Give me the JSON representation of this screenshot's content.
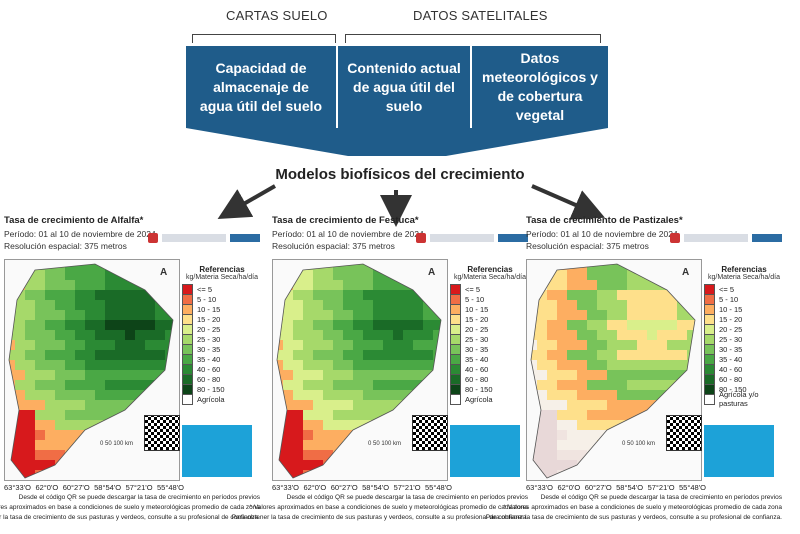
{
  "header": {
    "cartas_label": "CARTAS SUELO",
    "datos_label": "DATOS SATELITALES",
    "boxes": [
      "Capacidad de almacenaje de agua útil del suelo",
      "Contenido actual de agua útil del suelo",
      "Datos meteorológicos y de cobertura vegetal"
    ],
    "models_title": "Modelos biofísicos del crecimiento"
  },
  "colors": {
    "box_blue": "#1f5c8a",
    "info_blue": "#1da2d8"
  },
  "legend": {
    "title": "Referencias",
    "subtitle": "kg/Materia Seca/ha/día",
    "items": [
      {
        "label": "<= 5",
        "color": "#d7191c"
      },
      {
        "label": "5 - 10",
        "color": "#f06d45"
      },
      {
        "label": "10 - 15",
        "color": "#fdae61"
      },
      {
        "label": "15 - 20",
        "color": "#fee08b"
      },
      {
        "label": "20 - 25",
        "color": "#d9ef8b"
      },
      {
        "label": "25 - 30",
        "color": "#a6d96a"
      },
      {
        "label": "30 - 35",
        "color": "#78c35a"
      },
      {
        "label": "35 - 40",
        "color": "#4aa845"
      },
      {
        "label": "40 - 60",
        "color": "#2b8a34"
      },
      {
        "label": "60 - 80",
        "color": "#1a6b27"
      },
      {
        "label": "80 - 150",
        "color": "#0d4418"
      }
    ]
  },
  "panels": [
    {
      "title": "Tasa de crecimiento de Alfalfa*",
      "period": "Período: 01 al 10 de noviembre de 2024",
      "resolution": "Resolución espacial: 375 metros",
      "agri_label": "Agrícola",
      "scale": "0   50   100 km",
      "coords": [
        "63°33'O",
        "62°0'O",
        "60°27'O",
        "58°54'O",
        "57°21'O",
        "55°48'O"
      ],
      "notes": [
        "Desde el código QR se puede descargar la tasa de crecimiento en períodos previos",
        "* Valores aproximados en base a condiciones de suelo y meteorológicas promedio de cada zona",
        "Para obtener la tasa de crecimiento de sus pasturas y verdeos, consulte a su profesional de confianza."
      ]
    },
    {
      "title": "Tasa de crecimiento de Festuca*",
      "period": "Período: 01 al 10 de noviembre de 2024",
      "resolution": "Resolución espacial: 375 metros",
      "agri_label": "Agrícola",
      "scale": "0   50   100 km",
      "coords": [
        "63°33'O",
        "62°0'O",
        "60°27'O",
        "58°54'O",
        "57°21'O",
        "55°48'O"
      ],
      "notes": [
        "Desde el código QR se puede descargar la tasa de crecimiento en períodos previos",
        "* Valores aproximados en base a condiciones de suelo y meteorológicas promedio de cada zona",
        "Para obtener la tasa de crecimiento de sus pasturas y verdeos, consulte a su profesional de confianza."
      ]
    },
    {
      "title": "Tasa de crecimiento de Pastizales*",
      "period": "Período: 01 al 10 de noviembre de 2024",
      "resolution": "Resolución espacial: 375 metros",
      "agri_label": "Agrícola y/o pasturas",
      "scale": "0   50   100 km",
      "coords": [
        "63°33'O",
        "62°0'O",
        "60°27'O",
        "58°54'O",
        "57°21'O",
        "55°48'O"
      ],
      "notes": [
        "Desde el código QR se puede descargar la tasa de crecimiento en períodos previos",
        "* Valores aproximados en base a condiciones de suelo y meteorológicas promedio de cada zona",
        "Para obtener la tasa de crecimiento de sus pasturas y verdeos, consulte a su profesional de confianza."
      ]
    }
  ]
}
